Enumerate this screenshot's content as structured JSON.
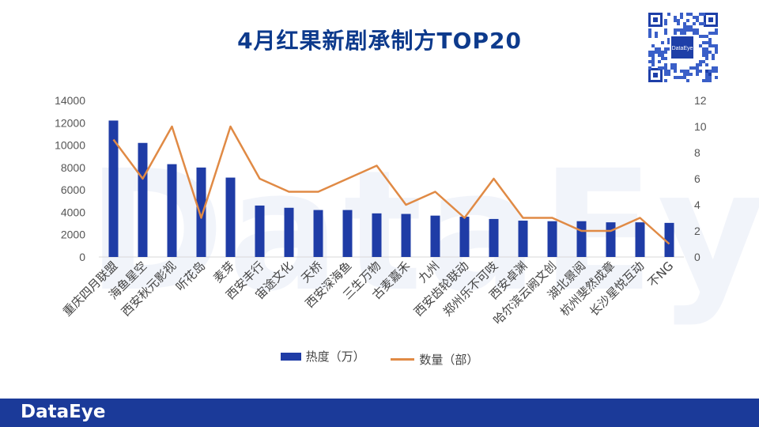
{
  "title": "4月红果新剧承制方TOP20",
  "watermark_text": "DataEye",
  "qr_logo_text": "DataEye",
  "footer_logo": "DataEye",
  "legend": {
    "bar_label": "热度（万）",
    "line_label": "数量（部）"
  },
  "colors": {
    "bar": "#1f3ca6",
    "line": "#e08a45",
    "title": "#0d3a8c",
    "footer": "#1b3a99"
  },
  "chart_data": {
    "type": "bar",
    "categories": [
      "重庆四月联盟",
      "海鱼星空",
      "西安秋元影视",
      "听花岛",
      "麦芽",
      "西安丰行",
      "宙途文化",
      "天桥",
      "西安深海鱼",
      "三生万物",
      "古麦嘉禾",
      "九州",
      "西安齿轮联动",
      "郑州乐不可吱",
      "西安卓渊",
      "哈尔滨云阙文创",
      "湖北景阅",
      "杭州斐然成章",
      "长沙星悦互动",
      "不NG"
    ],
    "series": [
      {
        "name": "热度（万）",
        "type": "bar",
        "axis": "left",
        "values": [
          12200,
          10200,
          8300,
          8000,
          7100,
          4600,
          4400,
          4200,
          4200,
          3900,
          3850,
          3700,
          3600,
          3400,
          3250,
          3200,
          3200,
          3100,
          3100,
          3050
        ]
      },
      {
        "name": "数量（部）",
        "type": "line",
        "axis": "right",
        "values": [
          9,
          6,
          10,
          3,
          10,
          6,
          5,
          5,
          6,
          7,
          4,
          5,
          3,
          6,
          3,
          3,
          2,
          2,
          3,
          1
        ]
      }
    ],
    "y_left": {
      "min": 0,
      "max": 14000,
      "ticks": [
        0,
        2000,
        4000,
        6000,
        8000,
        10000,
        12000,
        14000
      ]
    },
    "y_right": {
      "min": 0,
      "max": 12,
      "ticks": [
        0,
        2,
        4,
        6,
        8,
        10,
        12
      ]
    },
    "grid": false,
    "legend_position": "bottom"
  }
}
